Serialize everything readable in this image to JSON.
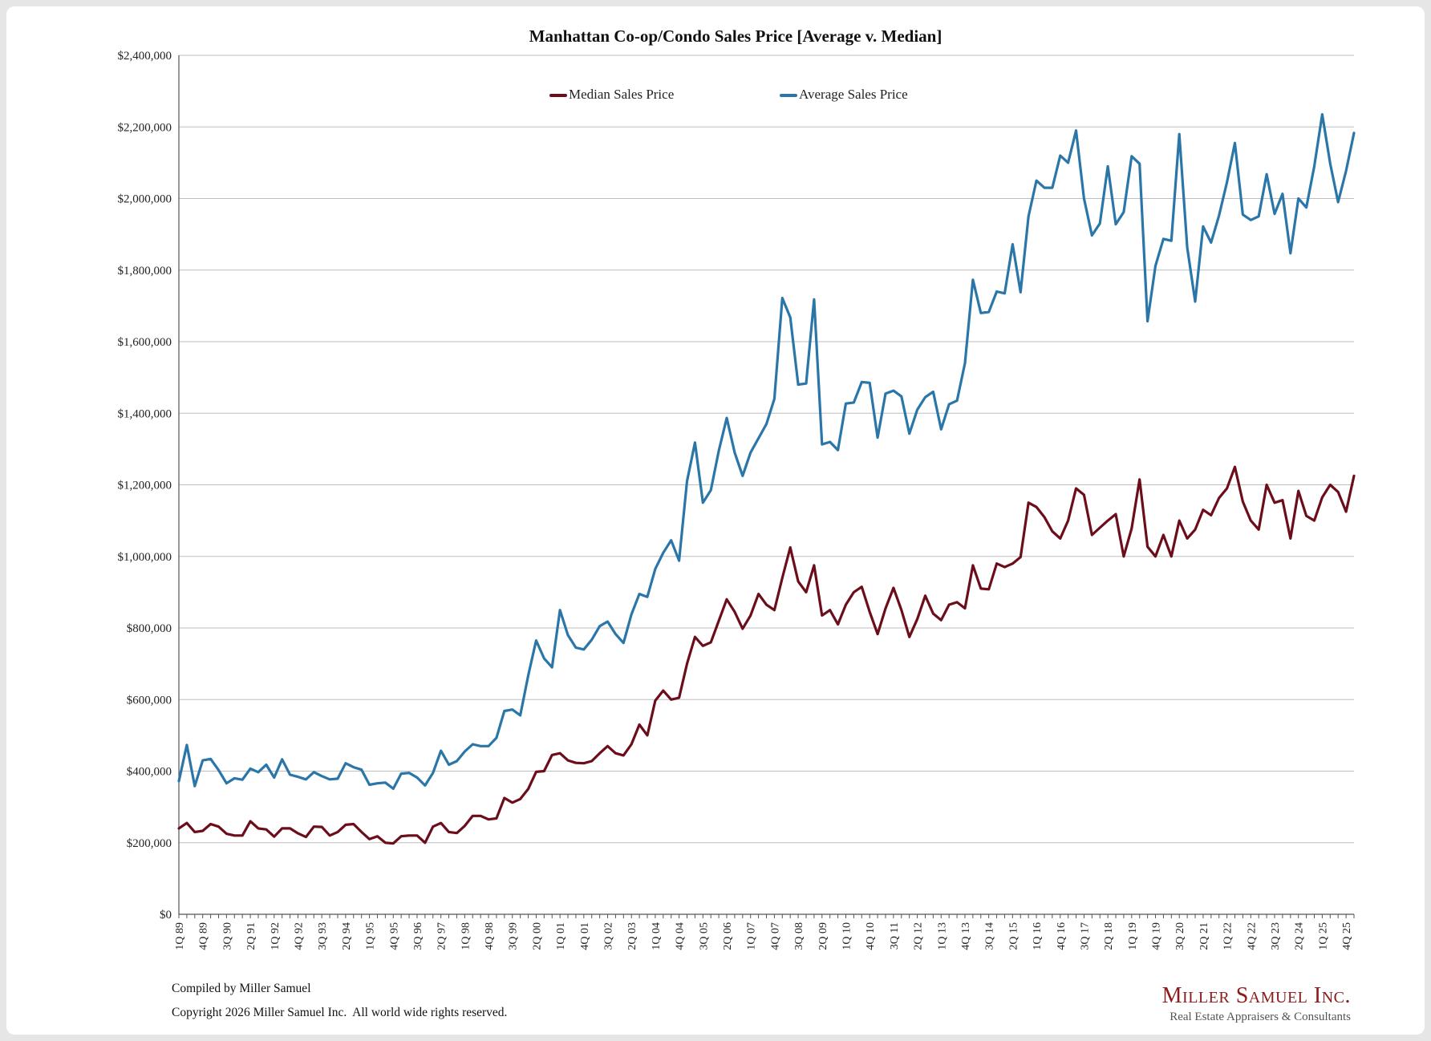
{
  "footer": {
    "compiled": "Compiled by Miller Samuel",
    "copyright": "Copyright 2026 Miller Samuel Inc.  All world wide rights reserved."
  },
  "brand": {
    "name": "Miller Samuel Inc.",
    "tagline": "Real Estate Appraisers & Consultants"
  },
  "chart_data": {
    "type": "line",
    "title": "Manhattan Co-op/Condo Sales Price [Average v. Median]",
    "xlabel": "",
    "ylabel": "",
    "ylim": [
      0,
      2400000
    ],
    "yticks": [
      "$0",
      "$200,000",
      "$400,000",
      "$600,000",
      "$800,000",
      "$1,000,000",
      "$1,200,000",
      "$1,400,000",
      "$1,600,000",
      "$1,800,000",
      "$2,000,000",
      "$2,200,000",
      "$2,400,000"
    ],
    "grid": true,
    "legend_position": "top-center",
    "start_quarter": "1Q 89",
    "num_points": 149,
    "tick_labels": [
      "1Q 89",
      "4Q 89",
      "3Q 90",
      "2Q 91",
      "1Q 92",
      "4Q 92",
      "3Q 93",
      "2Q 94",
      "1Q 95",
      "4Q 95",
      "3Q 96",
      "2Q 97",
      "1Q 98",
      "4Q 98",
      "3Q 99",
      "2Q 00",
      "1Q 01",
      "4Q 01",
      "3Q 02",
      "2Q 03",
      "1Q 04",
      "4Q 04",
      "3Q 05",
      "2Q 06",
      "1Q 07",
      "4Q 07",
      "3Q 08",
      "2Q 09",
      "1Q 10",
      "4Q 10",
      "3Q 11",
      "2Q 12",
      "1Q 13",
      "4Q 13",
      "3Q 14",
      "2Q 15",
      "1Q 16",
      "4Q 16",
      "3Q 17",
      "2Q 18",
      "1Q 19",
      "4Q 19",
      "3Q 20",
      "2Q 21",
      "1Q 22",
      "4Q 22",
      "3Q 23",
      "2Q 24",
      "1Q 25",
      "4Q 25"
    ],
    "series": [
      {
        "name": "Median Sales Price",
        "color": "#6b0d1a",
        "values": [
          240000,
          255000,
          230000,
          233000,
          252000,
          245000,
          225000,
          220000,
          220000,
          260000,
          240000,
          237000,
          217000,
          240000,
          240000,
          226000,
          216000,
          245000,
          244000,
          220000,
          230000,
          250000,
          252000,
          230000,
          210000,
          218000,
          200000,
          198000,
          218000,
          220000,
          220000,
          200000,
          245000,
          255000,
          230000,
          227000,
          247000,
          275000,
          275000,
          265000,
          268000,
          325000,
          312000,
          322000,
          350000,
          398000,
          400000,
          445000,
          450000,
          430000,
          423000,
          422000,
          428000,
          450000,
          470000,
          450000,
          444000,
          475000,
          530000,
          500000,
          597000,
          625000,
          600000,
          605000,
          700000,
          775000,
          750000,
          760000,
          820000,
          880000,
          845000,
          798000,
          835000,
          895000,
          865000,
          850000,
          940000,
          1025000,
          930000,
          900000,
          975000,
          835000,
          850000,
          810000,
          865000,
          900000,
          915000,
          845000,
          783000,
          855000,
          912000,
          850000,
          775000,
          825000,
          890000,
          840000,
          822000,
          865000,
          872000,
          855000,
          975000,
          910000,
          908000,
          980000,
          970000,
          980000,
          998000,
          1150000,
          1138000,
          1110000,
          1070000,
          1050000,
          1100000,
          1190000,
          1172000,
          1060000,
          1080000,
          1100000,
          1118000,
          1000000,
          1078000,
          1215000,
          1027000,
          1000000,
          1060000,
          1000000,
          1100000,
          1050000,
          1075000,
          1130000,
          1115000,
          1163000,
          1190000,
          1250000,
          1153000,
          1100000,
          1075000,
          1200000,
          1150000,
          1157000,
          1050000,
          1183000,
          1113000,
          1100000,
          1165000,
          1200000,
          1180000,
          1125000,
          1225000
        ]
      },
      {
        "name": "Average Sales Price",
        "color": "#2a76a8",
        "values": [
          372000,
          473000,
          358000,
          430000,
          434000,
          403000,
          366000,
          380000,
          376000,
          407000,
          397000,
          418000,
          382000,
          433000,
          390000,
          384000,
          377000,
          397000,
          386000,
          377000,
          379000,
          422000,
          411000,
          404000,
          362000,
          366000,
          368000,
          351000,
          393000,
          395000,
          382000,
          360000,
          395000,
          457000,
          418000,
          428000,
          455000,
          475000,
          470000,
          470000,
          493000,
          568000,
          572000,
          556000,
          667000,
          765000,
          715000,
          690000,
          850000,
          780000,
          745000,
          740000,
          767000,
          805000,
          818000,
          783000,
          758000,
          838000,
          895000,
          887000,
          965000,
          1010000,
          1045000,
          988000,
          1210000,
          1318000,
          1150000,
          1185000,
          1295000,
          1387000,
          1290000,
          1225000,
          1290000,
          1330000,
          1370000,
          1440000,
          1722000,
          1668000,
          1480000,
          1483000,
          1718000,
          1313000,
          1320000,
          1297000,
          1427000,
          1430000,
          1487000,
          1485000,
          1332000,
          1455000,
          1463000,
          1447000,
          1343000,
          1410000,
          1445000,
          1460000,
          1355000,
          1425000,
          1435000,
          1540000,
          1773000,
          1680000,
          1683000,
          1740000,
          1735000,
          1872000,
          1738000,
          1950000,
          2050000,
          2030000,
          2030000,
          2120000,
          2100000,
          2190000,
          2000000,
          1897000,
          1930000,
          2090000,
          1928000,
          1962000,
          2118000,
          2097000,
          1657000,
          1812000,
          1887000,
          1882000,
          2180000,
          1863000,
          1712000,
          1922000,
          1877000,
          1952000,
          2045000,
          2155000,
          1955000,
          1940000,
          1950000,
          2068000,
          1957000,
          2013000,
          1847000,
          2000000,
          1975000,
          2090000,
          2235000,
          2098000,
          1990000,
          2077000,
          2183000
        ]
      }
    ]
  }
}
